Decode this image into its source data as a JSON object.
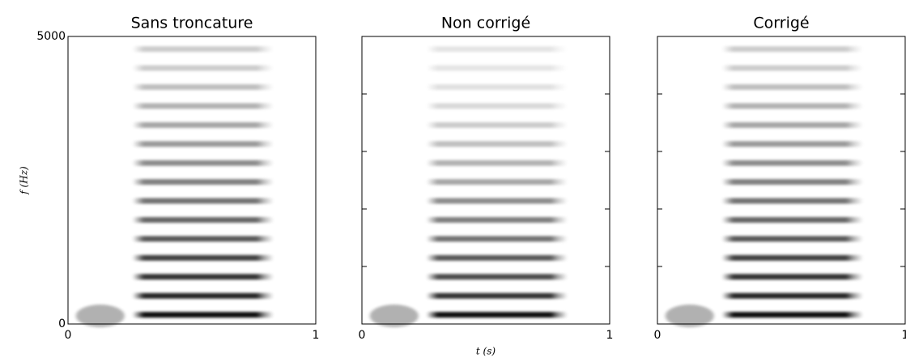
{
  "chart_data": [
    {
      "type": "spectrogram",
      "title": "Sans troncature",
      "ylabel": "f (Hz)",
      "xlim": [
        0,
        1
      ],
      "xticks": [
        0,
        1
      ],
      "ylim": [
        0,
        5000
      ],
      "yticks": [
        0,
        5000
      ],
      "t_range": [
        0.26,
        0.83
      ],
      "harmonics": [
        160,
        490,
        820,
        1150,
        1480,
        1810,
        2140,
        2470,
        2800,
        3130,
        3460,
        3790,
        4120,
        4450,
        4780
      ],
      "intensity": [
        0.95,
        0.85,
        0.8,
        0.75,
        0.65,
        0.6,
        0.55,
        0.5,
        0.45,
        0.4,
        0.35,
        0.3,
        0.25,
        0.2,
        0.2
      ]
    },
    {
      "type": "spectrogram",
      "title": "Non corrigé",
      "xlabel": "t (s)",
      "xlim": [
        0,
        1
      ],
      "xticks": [
        0,
        1
      ],
      "ylim": [
        0,
        5000
      ],
      "ytick_marks": [
        1000,
        2000,
        3000,
        4000
      ],
      "t_range": [
        0.26,
        0.83
      ],
      "harmonics": [
        160,
        490,
        820,
        1150,
        1480,
        1810,
        2140,
        2470,
        2800,
        3130,
        3460,
        3790,
        4120,
        4450,
        4780
      ],
      "intensity": [
        0.95,
        0.8,
        0.7,
        0.65,
        0.55,
        0.5,
        0.45,
        0.35,
        0.3,
        0.25,
        0.2,
        0.15,
        0.12,
        0.1,
        0.1
      ]
    },
    {
      "type": "spectrogram",
      "title": "Corrigé",
      "xlim": [
        0,
        1
      ],
      "xticks": [
        0,
        1
      ],
      "ylim": [
        0,
        5000
      ],
      "ytick_marks": [
        1000,
        2000,
        3000,
        4000
      ],
      "t_range": [
        0.26,
        0.83
      ],
      "harmonics": [
        160,
        490,
        820,
        1150,
        1480,
        1810,
        2140,
        2470,
        2800,
        3130,
        3460,
        3790,
        4120,
        4450,
        4780
      ],
      "intensity": [
        0.95,
        0.85,
        0.8,
        0.75,
        0.65,
        0.6,
        0.55,
        0.5,
        0.45,
        0.4,
        0.35,
        0.3,
        0.25,
        0.2,
        0.2
      ]
    }
  ]
}
